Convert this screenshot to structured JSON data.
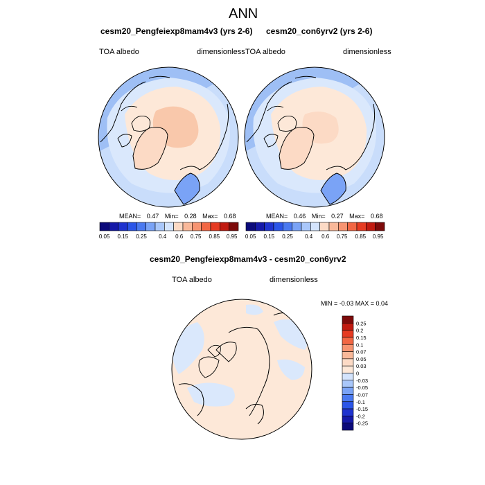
{
  "page": {
    "main_title": "ANN"
  },
  "panels": [
    {
      "title": "cesm20_Pengfeiexp8mam4v3 (yrs 2-6)",
      "left_label": "TOA albedo",
      "right_label": "dimensionless",
      "stats": {
        "mean_label": "MEAN=",
        "mean": "0.47",
        "min_label": "Min=",
        "min": "0.28",
        "max_label": "Max=",
        "max": "0.68"
      }
    },
    {
      "title": "cesm20_con6yrv2 (yrs 2-6)",
      "left_label": "TOA albedo",
      "right_label": "dimensionless",
      "stats": {
        "mean_label": "MEAN=",
        "mean": "0.46",
        "min_label": "Min=",
        "min": "0.27",
        "max_label": "Max=",
        "max": "0.68"
      }
    }
  ],
  "diff_panel": {
    "title": "cesm20_Pengfeiexp8mam4v3 - cesm20_con6yrv2",
    "left_label": "TOA albedo",
    "right_label": "dimensionless",
    "stats_text": "MIN =  -0.03 MAX =   0.04"
  },
  "colorbar_horizontal": {
    "labels": [
      "0.05",
      "0.15",
      "0.25",
      "0.4",
      "0.6",
      "0.75",
      "0.85",
      "0.95"
    ],
    "colors": [
      "#0b0a7a",
      "#1519a8",
      "#1f33cf",
      "#2b55e8",
      "#4a79f0",
      "#7aa3f6",
      "#a9c7fa",
      "#d4e4fd",
      "#fcdac5",
      "#f9b899",
      "#f79471",
      "#f26744",
      "#e63b22",
      "#c11a10",
      "#7d0a0a"
    ]
  },
  "colorbar_vertical": {
    "labels": [
      "0.25",
      "0.2",
      "0.15",
      "0.1",
      "0.07",
      "0.05",
      "0.03",
      "0",
      "-0.03",
      "-0.05",
      "-0.07",
      "-0.1",
      "-0.15",
      "-0.2",
      "-0.25"
    ],
    "colors": [
      "#7d0a0a",
      "#c11a10",
      "#e63b22",
      "#f26744",
      "#f79471",
      "#f9b899",
      "#fcdac5",
      "#fde8d8",
      "#d4e4fd",
      "#a9c7fa",
      "#7aa3f6",
      "#4a79f0",
      "#2b55e8",
      "#1f33cf",
      "#1519a8",
      "#0b0a7a"
    ]
  },
  "map_colors": {
    "outer_light_blue": "#c9ddfb",
    "mid_blue": "#9ebff5",
    "light_blue": "#dae8fc",
    "peach": "#fcdac5",
    "pale_peach": "#fde8d8",
    "salmon": "#f9c8ab"
  }
}
